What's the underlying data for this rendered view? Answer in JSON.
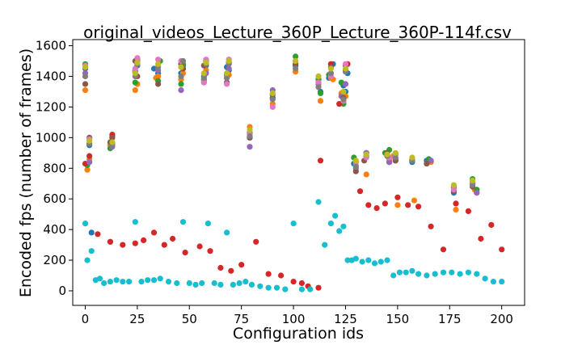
{
  "chart_data": {
    "type": "scatter",
    "title": "original_videos_Lecture_360P_Lecture_360P-114f.csv",
    "xlabel": "Configuration ids",
    "ylabel": "Encoded fps (number of frames)",
    "xlim": [
      -6,
      211
    ],
    "ylim": [
      -95,
      1640
    ],
    "xticks": [
      0,
      25,
      50,
      75,
      100,
      125,
      150,
      175,
      200
    ],
    "yticks": [
      0,
      200,
      400,
      600,
      800,
      1000,
      1200,
      1400,
      1600
    ],
    "grid": false,
    "legend": "none",
    "marker_colors": [
      "#1f77b4",
      "#ff7f0e",
      "#2ca02c",
      "#d62728",
      "#9467bd",
      "#8c564b",
      "#e377c2",
      "#7f7f7f",
      "#bcbd22",
      "#17becf"
    ],
    "series": [
      {
        "color": "#1f77b4",
        "x": [
          0,
          2,
          3,
          12,
          13,
          24,
          25,
          33,
          35,
          46,
          47,
          57,
          58,
          68,
          69,
          79,
          90,
          101,
          112,
          113,
          117,
          119,
          124,
          125,
          126,
          129,
          135,
          145,
          146,
          149,
          157,
          164,
          177,
          186,
          188
        ],
        "y": [
          1450,
          950,
          380,
          320,
          960,
          1430,
          1470,
          1450,
          1420,
          1420,
          1470,
          1400,
          1470,
          1460,
          1440,
          1000,
          1280,
          1470,
          1380,
          1300,
          1390,
          1480,
          1340,
          1300,
          1420,
          830,
          880,
          880,
          840,
          850,
          840,
          850,
          640,
          710,
          660
        ]
      },
      {
        "color": "#ff7f0e",
        "x": [
          0,
          1,
          2,
          12,
          13,
          24,
          25,
          34,
          35,
          46,
          47,
          57,
          58,
          68,
          69,
          79,
          90,
          101,
          112,
          113,
          118,
          119,
          123,
          124,
          125,
          130,
          135,
          146,
          148,
          150,
          158,
          166,
          178,
          187,
          188
        ],
        "y": [
          1310,
          790,
          860,
          950,
          1000,
          1310,
          1350,
          1390,
          1400,
          1380,
          1420,
          1370,
          1440,
          1390,
          1410,
          1070,
          1220,
          1430,
          1400,
          1240,
          1390,
          1380,
          1290,
          1230,
          1270,
          840,
          760,
          860,
          880,
          560,
          590,
          840,
          530,
          660,
          640
        ]
      },
      {
        "color": "#2ca02c",
        "x": [
          0,
          1,
          2,
          12,
          13,
          24,
          25,
          35,
          36,
          46,
          47,
          57,
          58,
          68,
          69,
          79,
          90,
          101,
          112,
          113,
          117,
          118,
          123,
          124,
          125,
          129,
          135,
          144,
          146,
          149,
          157,
          165,
          177,
          186,
          188
        ],
        "y": [
          1480,
          820,
          960,
          930,
          1010,
          1360,
          1510,
          1370,
          1500,
          1350,
          1480,
          1380,
          1500,
          1410,
          1490,
          1030,
          1260,
          1530,
          1380,
          1290,
          1410,
          1480,
          1360,
          1220,
          1440,
          870,
          900,
          900,
          920,
          890,
          850,
          860,
          680,
          730,
          660
        ]
      },
      {
        "color": "#d62728",
        "x": [
          0,
          2,
          6,
          12,
          13,
          18,
          24,
          28,
          33,
          38,
          42,
          48,
          55,
          60,
          65,
          70,
          75,
          82,
          88,
          94,
          100,
          104,
          107,
          112,
          113,
          118,
          122,
          126,
          132,
          136,
          140,
          144,
          150,
          155,
          160,
          166,
          172,
          178,
          184,
          190,
          195,
          200
        ],
        "y": [
          830,
          880,
          370,
          320,
          1020,
          300,
          310,
          330,
          380,
          300,
          340,
          250,
          290,
          260,
          150,
          130,
          170,
          320,
          110,
          100,
          60,
          50,
          30,
          20,
          850,
          1480,
          1220,
          1480,
          650,
          560,
          540,
          570,
          610,
          560,
          550,
          420,
          270,
          570,
          520,
          340,
          430,
          270
        ]
      },
      {
        "color": "#9467bd",
        "x": [
          0,
          2,
          13,
          24,
          25,
          35,
          46,
          47,
          57,
          58,
          68,
          69,
          79,
          90,
          101,
          112,
          118,
          123,
          125,
          130,
          135,
          146,
          149,
          157,
          166,
          177,
          186,
          188
        ],
        "y": [
          1420,
          840,
          940,
          1440,
          1500,
          1440,
          1310,
          1450,
          1360,
          1420,
          1410,
          1450,
          940,
          1310,
          1500,
          1360,
          1420,
          1270,
          1350,
          800,
          900,
          840,
          860,
          860,
          850,
          670,
          700,
          640
        ]
      },
      {
        "color": "#8c564b",
        "x": [
          0,
          2,
          12,
          13,
          24,
          25,
          35,
          46,
          47,
          57,
          58,
          68,
          69,
          79,
          90,
          101,
          112,
          118,
          124,
          125,
          130,
          134,
          145,
          149,
          157,
          164,
          177,
          186
        ],
        "y": [
          1350,
          1000,
          970,
          1000,
          1500,
          1400,
          1350,
          1480,
          1450,
          1470,
          1500,
          1360,
          1490,
          1000,
          1260,
          1480,
          1350,
          1460,
          1260,
          1470,
          780,
          850,
          900,
          850,
          850,
          830,
          650,
          680
        ]
      },
      {
        "color": "#e377c2",
        "x": [
          0,
          2,
          13,
          24,
          25,
          35,
          46,
          57,
          58,
          68,
          69,
          79,
          90,
          101,
          112,
          118,
          124,
          125,
          130,
          135,
          146,
          149,
          157,
          177,
          186
        ],
        "y": [
          1470,
          990,
          950,
          1450,
          1520,
          1510,
          1500,
          1360,
          1510,
          1350,
          1510,
          1020,
          1200,
          1500,
          1360,
          1400,
          1240,
          1480,
          820,
          870,
          870,
          890,
          860,
          660,
          700
        ]
      },
      {
        "color": "#7f7f7f",
        "x": [
          0,
          2,
          13,
          24,
          25,
          35,
          46,
          47,
          57,
          58,
          68,
          69,
          79,
          90,
          101,
          112,
          118,
          124,
          125,
          130,
          145,
          149,
          157,
          186
        ],
        "y": [
          1400,
          960,
          950,
          1400,
          1480,
          1460,
          1400,
          1500,
          1390,
          1480,
          1390,
          1480,
          1010,
          1250,
          1450,
          1330,
          1420,
          1250,
          1430,
          810,
          880,
          870,
          850,
          690
        ]
      },
      {
        "color": "#bcbd22",
        "x": [
          0,
          2,
          13,
          24,
          25,
          35,
          46,
          57,
          58,
          68,
          69,
          79,
          90,
          101,
          112,
          118,
          124,
          125,
          130,
          135,
          145,
          149,
          157,
          177,
          186
        ],
        "y": [
          1460,
          980,
          970,
          1420,
          1490,
          1480,
          1460,
          1420,
          1490,
          1420,
          1500,
          1050,
          1290,
          1500,
          1400,
          1450,
          1300,
          1450,
          850,
          890,
          890,
          900,
          870,
          690,
          720
        ]
      },
      {
        "color": "#17becf",
        "x": [
          0,
          1,
          3,
          5,
          7,
          9,
          12,
          15,
          18,
          21,
          24,
          27,
          30,
          33,
          36,
          40,
          44,
          47,
          50,
          53,
          56,
          59,
          62,
          65,
          68,
          71,
          74,
          77,
          80,
          84,
          88,
          92,
          96,
          100,
          104,
          108,
          112,
          115,
          118,
          120,
          122,
          124,
          126,
          128,
          130,
          133,
          136,
          139,
          142,
          145,
          148,
          151,
          154,
          157,
          160,
          164,
          168,
          172,
          176,
          180,
          184,
          188,
          192,
          196,
          200
        ],
        "y": [
          440,
          200,
          260,
          70,
          80,
          50,
          60,
          70,
          60,
          60,
          450,
          60,
          70,
          70,
          80,
          60,
          50,
          450,
          50,
          40,
          50,
          440,
          50,
          40,
          380,
          40,
          50,
          60,
          40,
          30,
          20,
          20,
          10,
          440,
          10,
          10,
          580,
          300,
          440,
          490,
          390,
          420,
          200,
          200,
          210,
          190,
          200,
          180,
          190,
          200,
          100,
          120,
          120,
          130,
          110,
          100,
          110,
          120,
          120,
          110,
          120,
          110,
          80,
          60,
          60
        ]
      }
    ]
  }
}
